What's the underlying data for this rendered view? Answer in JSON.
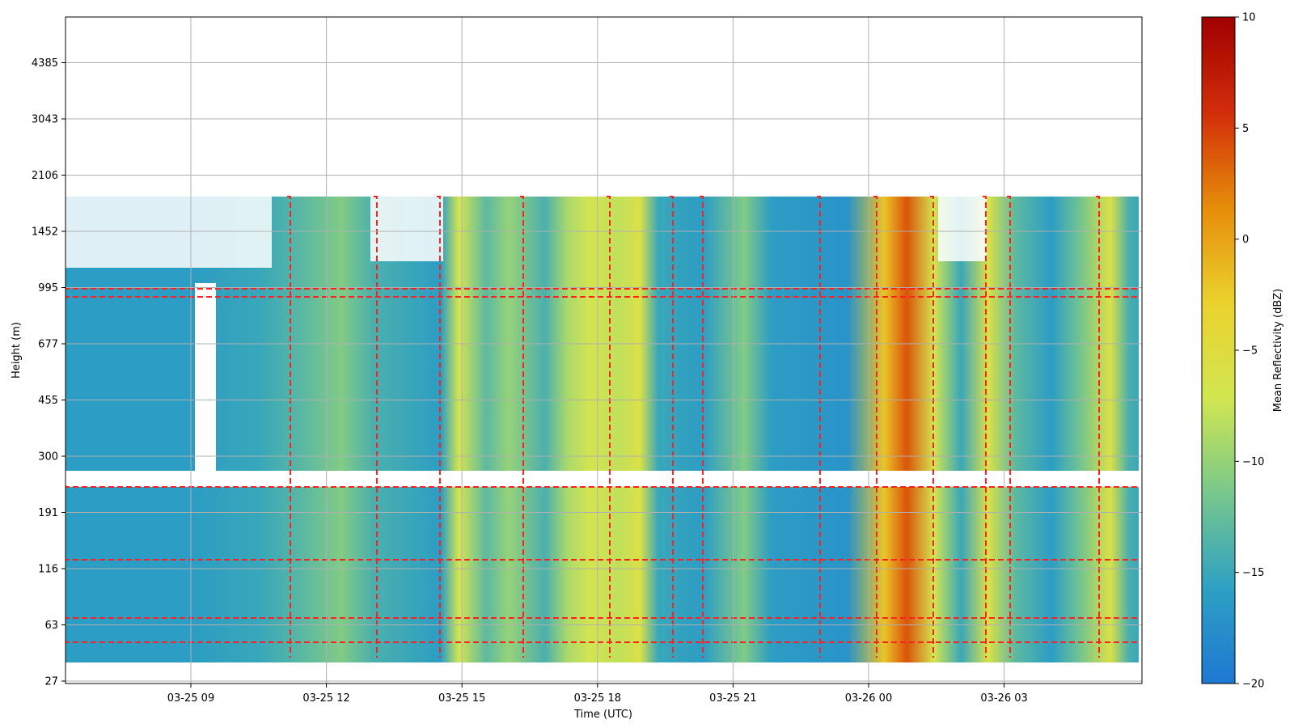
{
  "chart_data": {
    "type": "heatmap",
    "title": "",
    "xlabel": "Time (UTC)",
    "ylabel": "Height (m)",
    "x_ticks": [
      "03-25 09",
      "03-25 12",
      "03-25 15",
      "03-25 18",
      "03-25 21",
      "03-26 00",
      "03-26 03"
    ],
    "y_ticks": [
      "27",
      "63",
      "116",
      "191",
      "300",
      "455",
      "677",
      "995",
      "1452",
      "2106",
      "3043",
      "4385"
    ],
    "xlim_hours": [
      -2.8,
      21.0
    ],
    "colorbar": {
      "label": "Mean Reflectivity (dBZ)",
      "range": [
        -20,
        10
      ],
      "ticks": [
        "−20",
        "−15",
        "−10",
        "−5",
        "0",
        "5",
        "10"
      ],
      "colors": [
        "#1e78d2",
        "#2da0c3",
        "#78c88c",
        "#d2e650",
        "#ebd22d",
        "#e68c0a",
        "#d22d0a",
        "#a00000"
      ]
    },
    "contour": {
      "color": "#ff2020",
      "style": "dashed"
    },
    "grid": true,
    "columns": [
      {
        "t": -2.7,
        "dbz": -16
      },
      {
        "t": 0.0,
        "dbz": -16
      },
      {
        "t": 1.5,
        "dbz": -15
      },
      {
        "t": 2.5,
        "dbz": -13
      },
      {
        "t": 3.3,
        "dbz": -11
      },
      {
        "t": 4.0,
        "dbz": -14
      },
      {
        "t": 5.5,
        "dbz": -16
      },
      {
        "t": 5.9,
        "dbz": -7
      },
      {
        "t": 6.5,
        "dbz": -13
      },
      {
        "t": 7.0,
        "dbz": -10
      },
      {
        "t": 7.8,
        "dbz": -14
      },
      {
        "t": 8.3,
        "dbz": -9
      },
      {
        "t": 8.8,
        "dbz": -7
      },
      {
        "t": 9.4,
        "dbz": -8
      },
      {
        "t": 9.9,
        "dbz": -6
      },
      {
        "t": 10.3,
        "dbz": -15
      },
      {
        "t": 11.3,
        "dbz": -16
      },
      {
        "t": 12.2,
        "dbz": -11
      },
      {
        "t": 12.8,
        "dbz": -16
      },
      {
        "t": 14.5,
        "dbz": -17
      },
      {
        "t": 15.3,
        "dbz": -2
      },
      {
        "t": 15.8,
        "dbz": 4
      },
      {
        "t": 16.4,
        "dbz": -7
      },
      {
        "t": 17.0,
        "dbz": -15
      },
      {
        "t": 17.6,
        "dbz": -6
      },
      {
        "t": 18.2,
        "dbz": -13
      },
      {
        "t": 19.0,
        "dbz": -16
      },
      {
        "t": 19.6,
        "dbz": -12
      },
      {
        "t": 20.3,
        "dbz": -6
      },
      {
        "t": 20.7,
        "dbz": -14
      },
      {
        "t": 21.0,
        "dbz": -15
      }
    ]
  }
}
